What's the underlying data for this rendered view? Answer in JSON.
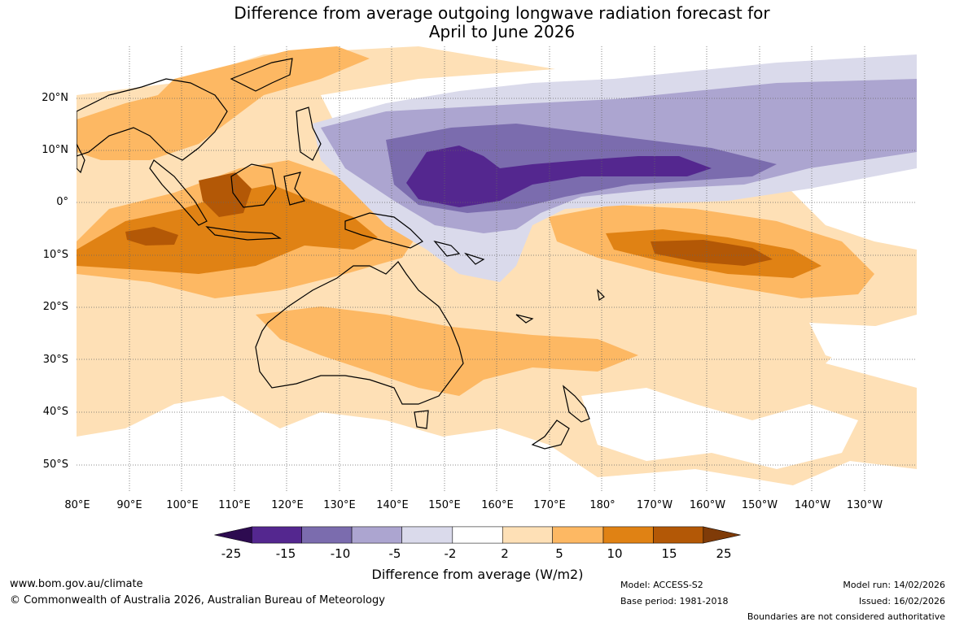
{
  "title": {
    "line1": "Difference from average outgoing longwave radiation forecast for",
    "line2": "April to June 2026"
  },
  "map": {
    "latitude_labels": [
      "20°N",
      "10°N",
      "0°",
      "10°S",
      "20°S",
      "30°S",
      "40°S",
      "50°S"
    ],
    "longitude_labels": [
      "80°E",
      "90°E",
      "100°E",
      "110°E",
      "120°E",
      "130°E",
      "140°E",
      "150°E",
      "160°E",
      "170°E",
      "180°",
      "170°W",
      "160°W",
      "150°W",
      "140°W",
      "130°W"
    ]
  },
  "colorbar": {
    "labels": [
      "-25",
      "-15",
      "-10",
      "-5",
      "-2",
      "2",
      "5",
      "10",
      "15",
      "25"
    ],
    "colors": [
      "#2d0b50",
      "#54278f",
      "#7b6cae",
      "#aca5d0",
      "#dadaeb",
      "#ffffff",
      "#fee0b6",
      "#fdb863",
      "#e08214",
      "#b35806",
      "#7f3b08"
    ],
    "title": "Difference from average (W/m2)"
  },
  "footer": {
    "website": "www.bom.gov.au/climate",
    "copyright": "© Commonwealth of Australia 2026, Australian Bureau of Meteorology",
    "model": "Model: ACCESS-S2",
    "base_period": "Base period: 1981-2018",
    "model_run": "Model run: 14/02/2026",
    "issued": "Issued: 16/02/2026",
    "disclaimer": "Boundaries are not considered authoritative"
  }
}
